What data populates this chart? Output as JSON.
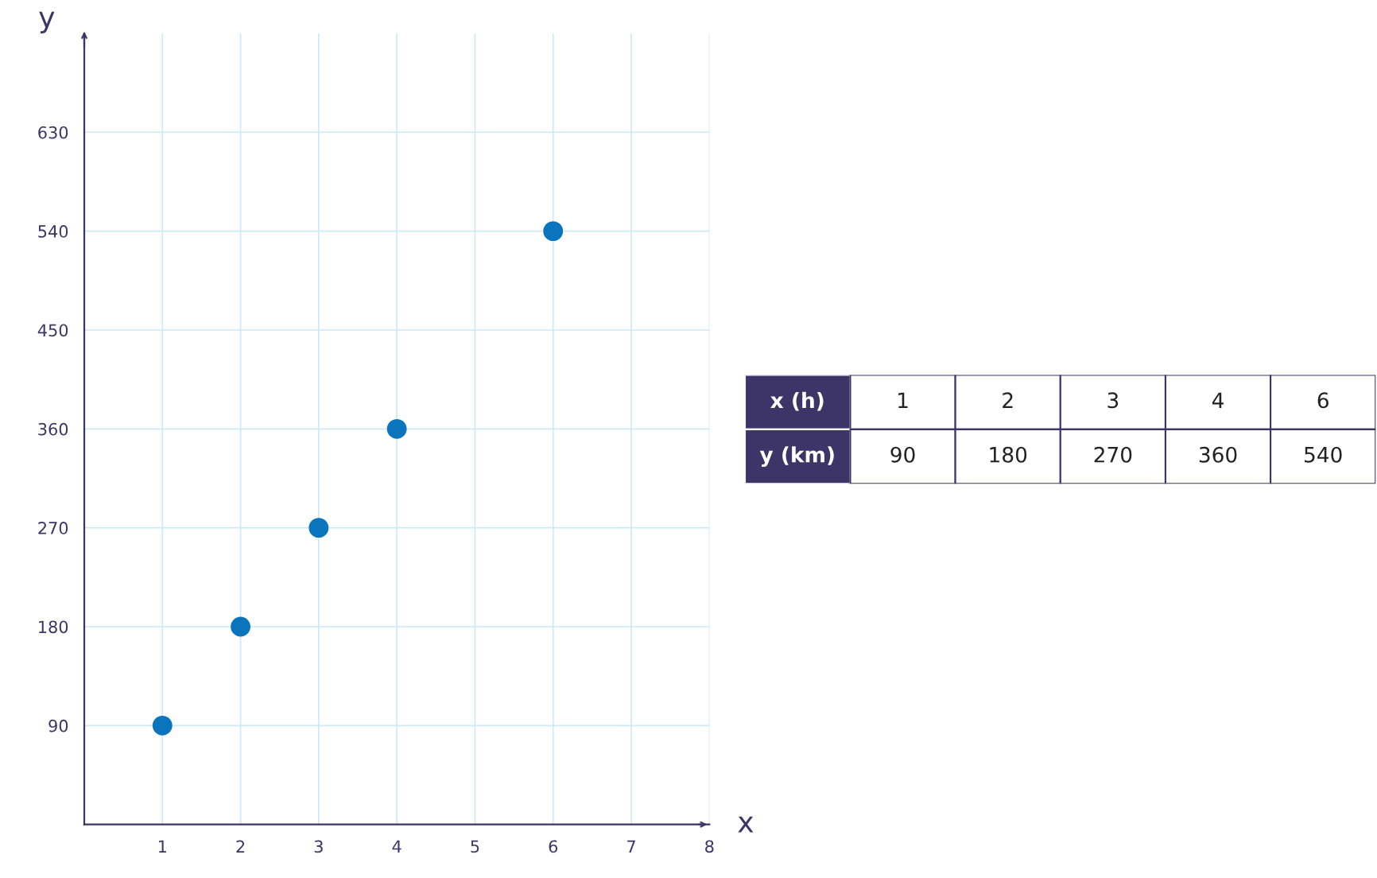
{
  "chart_data": {
    "type": "scatter",
    "xlabel": "x",
    "ylabel": "y",
    "x": [
      1,
      2,
      3,
      4,
      6
    ],
    "series": [
      {
        "color": "#0a75bd",
        "values": [
          90,
          180,
          270,
          360,
          540
        ]
      }
    ],
    "xlim": [
      0,
      8
    ],
    "xticks": [
      1,
      2,
      3,
      4,
      5,
      6,
      7,
      8
    ],
    "ylim": [
      0,
      720
    ],
    "yticks": [
      90,
      180,
      270,
      360,
      450,
      540,
      630
    ],
    "grid": true,
    "marker": "circle",
    "annotations": [
      "x (h)",
      "1",
      "2",
      "3",
      "4",
      "6",
      "y (km)",
      "90",
      "180",
      "270",
      "360",
      "540"
    ]
  }
}
